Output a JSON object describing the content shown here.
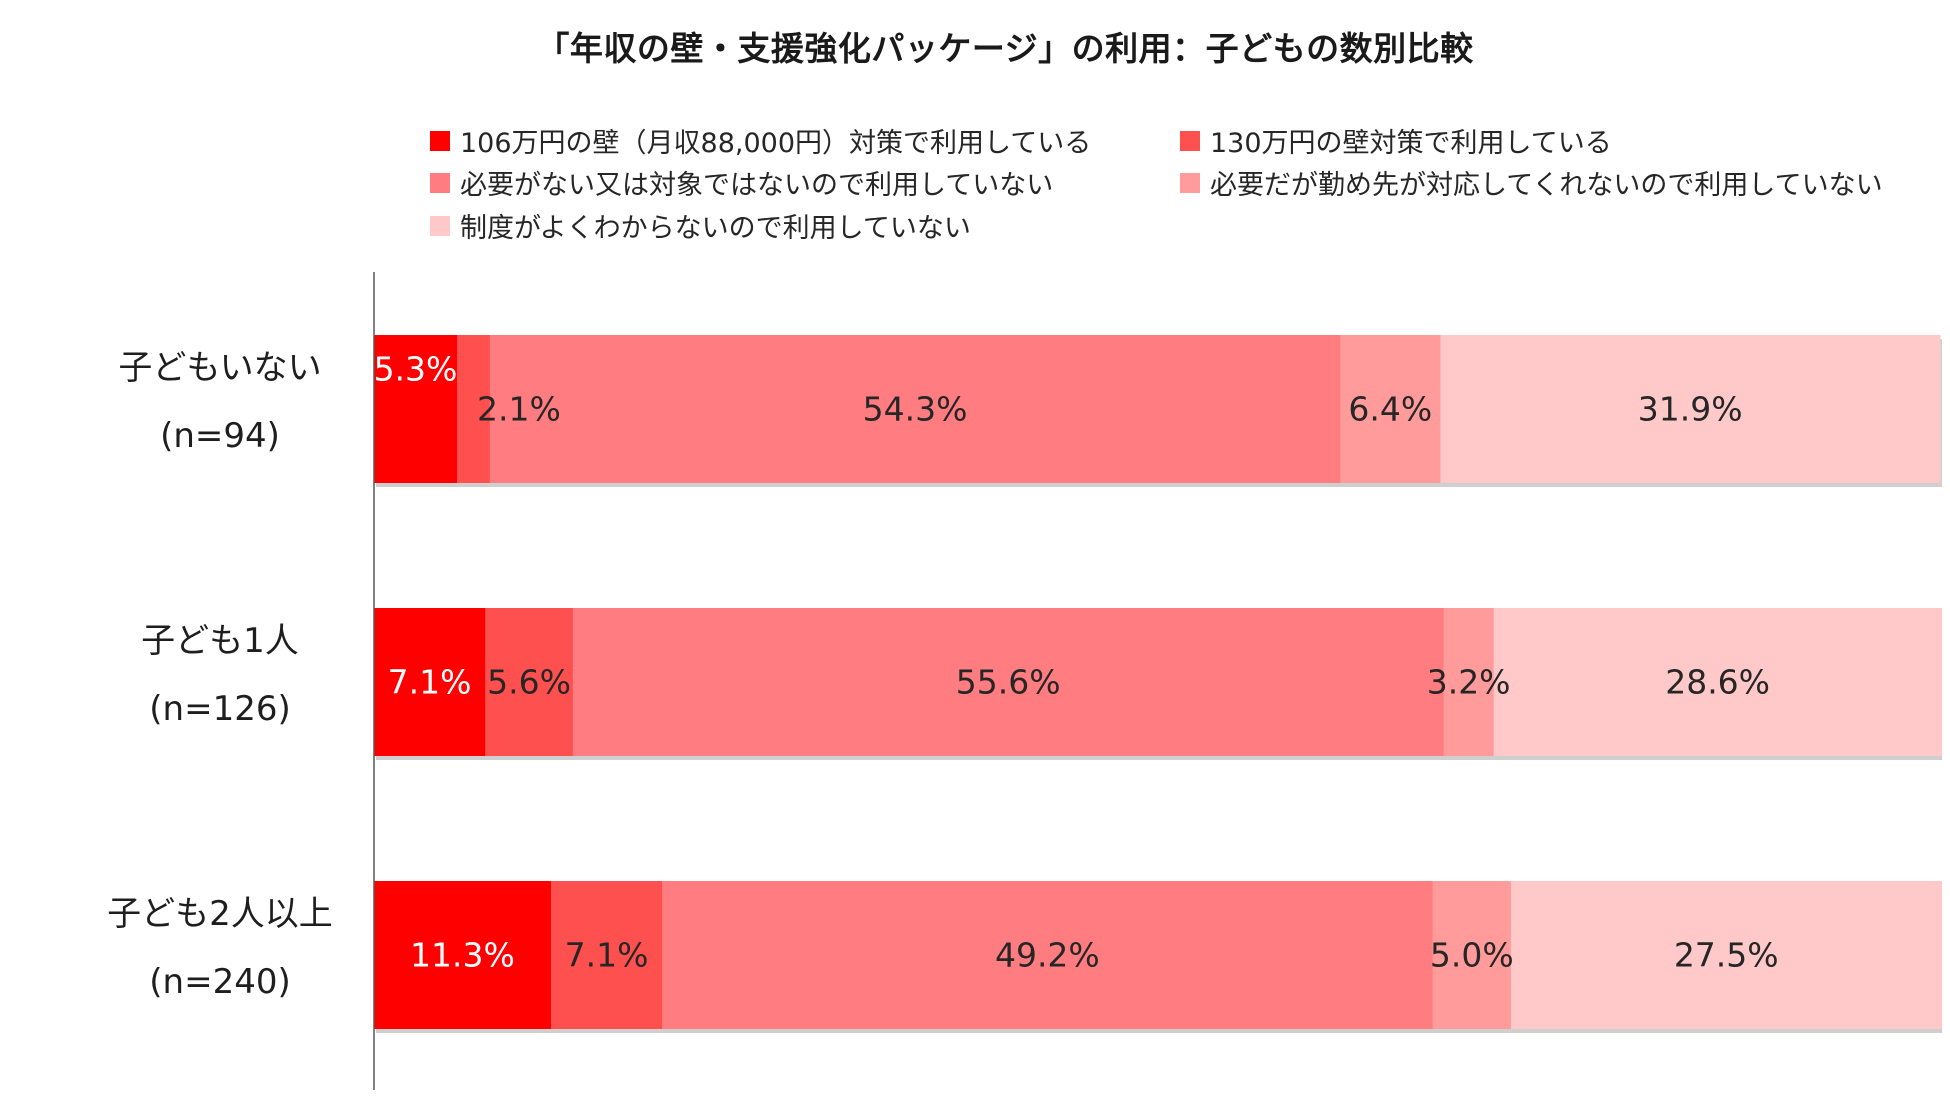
{
  "chart_data": {
    "type": "bar",
    "orientation": "horizontal",
    "stacked": true,
    "title": "「年収の壁・支援強化パッケージ」の利用：子どもの数別比較",
    "xlabel": "",
    "ylabel": "",
    "xlim": [
      0,
      100
    ],
    "grid": false,
    "legend_position": "top",
    "categories": [
      {
        "name": "子どもいない",
        "n": "(n=94)"
      },
      {
        "name": "子ども1人",
        "n": "(n=126)"
      },
      {
        "name": "子ども2人以上",
        "n": "(n=240)"
      }
    ],
    "series": [
      {
        "name": "106万円の壁（月収88,000円）対策で利用している",
        "color": "#ff0000",
        "label_color": "#ffffff",
        "values": [
          5.3,
          7.1,
          11.3
        ],
        "labels": [
          "5.3%",
          "7.1%",
          "11.3%"
        ]
      },
      {
        "name": "130万円の壁対策で利用している",
        "color": "#ff5050",
        "label_color": "#262626",
        "values": [
          2.1,
          5.6,
          7.1
        ],
        "labels": [
          "2.1%",
          "5.6%",
          "7.1%"
        ]
      },
      {
        "name": "必要がない又は対象ではないので利用していない",
        "color": "#ff7c80",
        "label_color": "#262626",
        "values": [
          54.3,
          55.6,
          49.2
        ],
        "labels": [
          "54.3%",
          "55.6%",
          "49.2%"
        ]
      },
      {
        "name": "必要だが勤め先が対応してくれないので利用していない",
        "color": "#ff9b9b",
        "label_color": "#262626",
        "values": [
          6.4,
          3.2,
          5.0
        ],
        "labels": [
          "6.4%",
          "3.2%",
          "5.0%"
        ]
      },
      {
        "name": "制度がよくわからないので利用していない",
        "color": "#ffc9c9",
        "label_color": "#262626",
        "values": [
          31.9,
          28.6,
          27.5
        ],
        "labels": [
          "31.9%",
          "28.6%",
          "27.5%"
        ]
      }
    ]
  }
}
